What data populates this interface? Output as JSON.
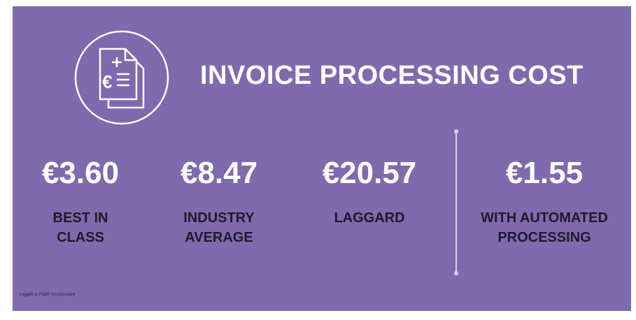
{
  "title": "INVOICE PROCESSING COST",
  "icon": "invoice-euro-icon",
  "colors": {
    "background": "#7e6aad",
    "value_text": "#ffffff",
    "label_text": "#1e1a2c"
  },
  "stats": [
    {
      "value": "€3.60",
      "label": "BEST IN\nCLASS"
    },
    {
      "value": "€8.47",
      "label": "INDUSTRY\nAVERAGE"
    },
    {
      "value": "€20.57",
      "label": "LAGGARD"
    },
    {
      "value": "€1.55",
      "label": "WITH AUTOMATED\nPROCESSING"
    }
  ],
  "footer": "Leggett & Platt® Incorporated",
  "icon_glyph": "€"
}
